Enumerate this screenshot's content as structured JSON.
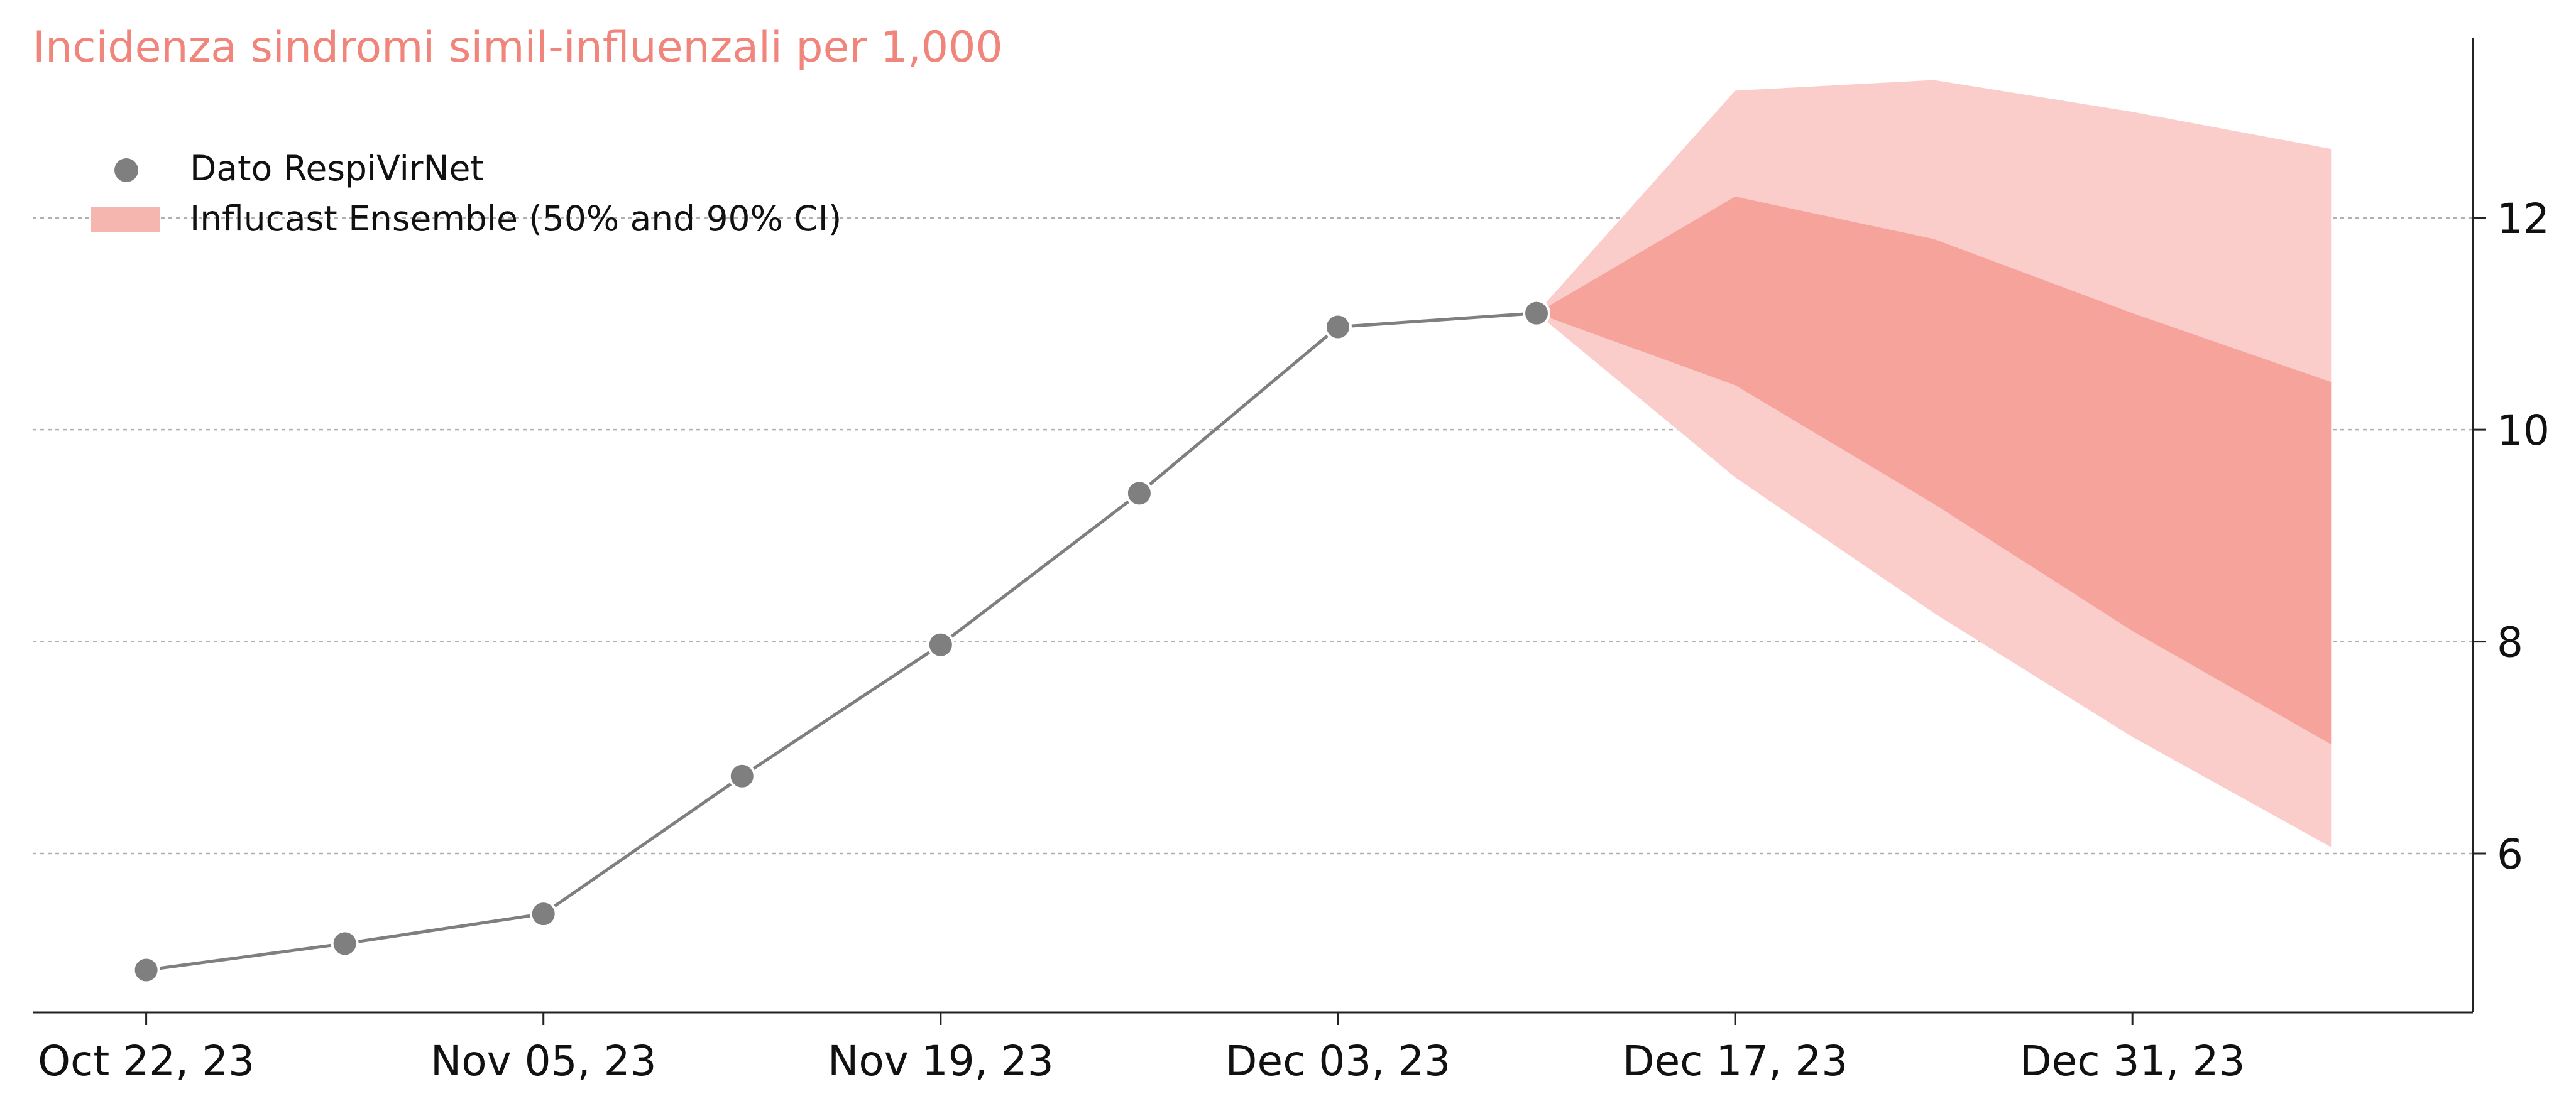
{
  "chart_data": {
    "type": "line",
    "title": "Incidenza sindromi simil-influenzali per 1,000",
    "xlabel": "",
    "ylabel": "",
    "ylim": [
      4.5,
      13.7
    ],
    "yticks": [
      6,
      8,
      10,
      12
    ],
    "y_axis_position": "right",
    "grid": "horizontal dashed",
    "legend_position": "top-left",
    "x_tick_labels": [
      "Oct 22, 23",
      "Nov 05, 23",
      "Nov 19, 23",
      "Dec 03, 23",
      "Dec 17, 23",
      "Dec 31, 23"
    ],
    "x_tick_dates": [
      "2023-10-22",
      "2023-11-05",
      "2023-11-19",
      "2023-12-03",
      "2023-12-17",
      "2023-12-31"
    ],
    "x_range": [
      "2023-10-18",
      "2024-01-12"
    ],
    "series": [
      {
        "name": "Dato RespiVirNet",
        "kind": "line+markers",
        "color": "#7f7f7f",
        "x": [
          "2023-10-22",
          "2023-10-29",
          "2023-11-05",
          "2023-11-12",
          "2023-11-19",
          "2023-11-26",
          "2023-12-03",
          "2023-12-10"
        ],
        "values": [
          4.9,
          5.15,
          5.43,
          6.73,
          7.97,
          9.4,
          10.97,
          11.1
        ]
      },
      {
        "name": "Influcast Ensemble (50% and 90% CI)",
        "kind": "band",
        "color_outer": "#fbcdca",
        "color_inner": "#f6a39c",
        "x": [
          "2023-12-10",
          "2023-12-17",
          "2023-12-24",
          "2023-12-31",
          "2024-01-07"
        ],
        "ci90_upper": [
          11.1,
          13.2,
          13.3,
          13.0,
          12.65
        ],
        "ci50_upper": [
          11.1,
          12.2,
          11.8,
          11.1,
          10.45
        ],
        "ci50_lower": [
          11.1,
          10.42,
          9.3,
          8.1,
          7.03
        ],
        "ci90_lower": [
          11.1,
          9.55,
          8.27,
          7.1,
          6.06
        ]
      }
    ]
  },
  "colors": {
    "title": "#f0857b",
    "observed": "#7f7f7f",
    "ci90": "#fbcdca",
    "ci50": "#f6a39c",
    "grid": "#b0b0b0",
    "axis": "#222222"
  }
}
